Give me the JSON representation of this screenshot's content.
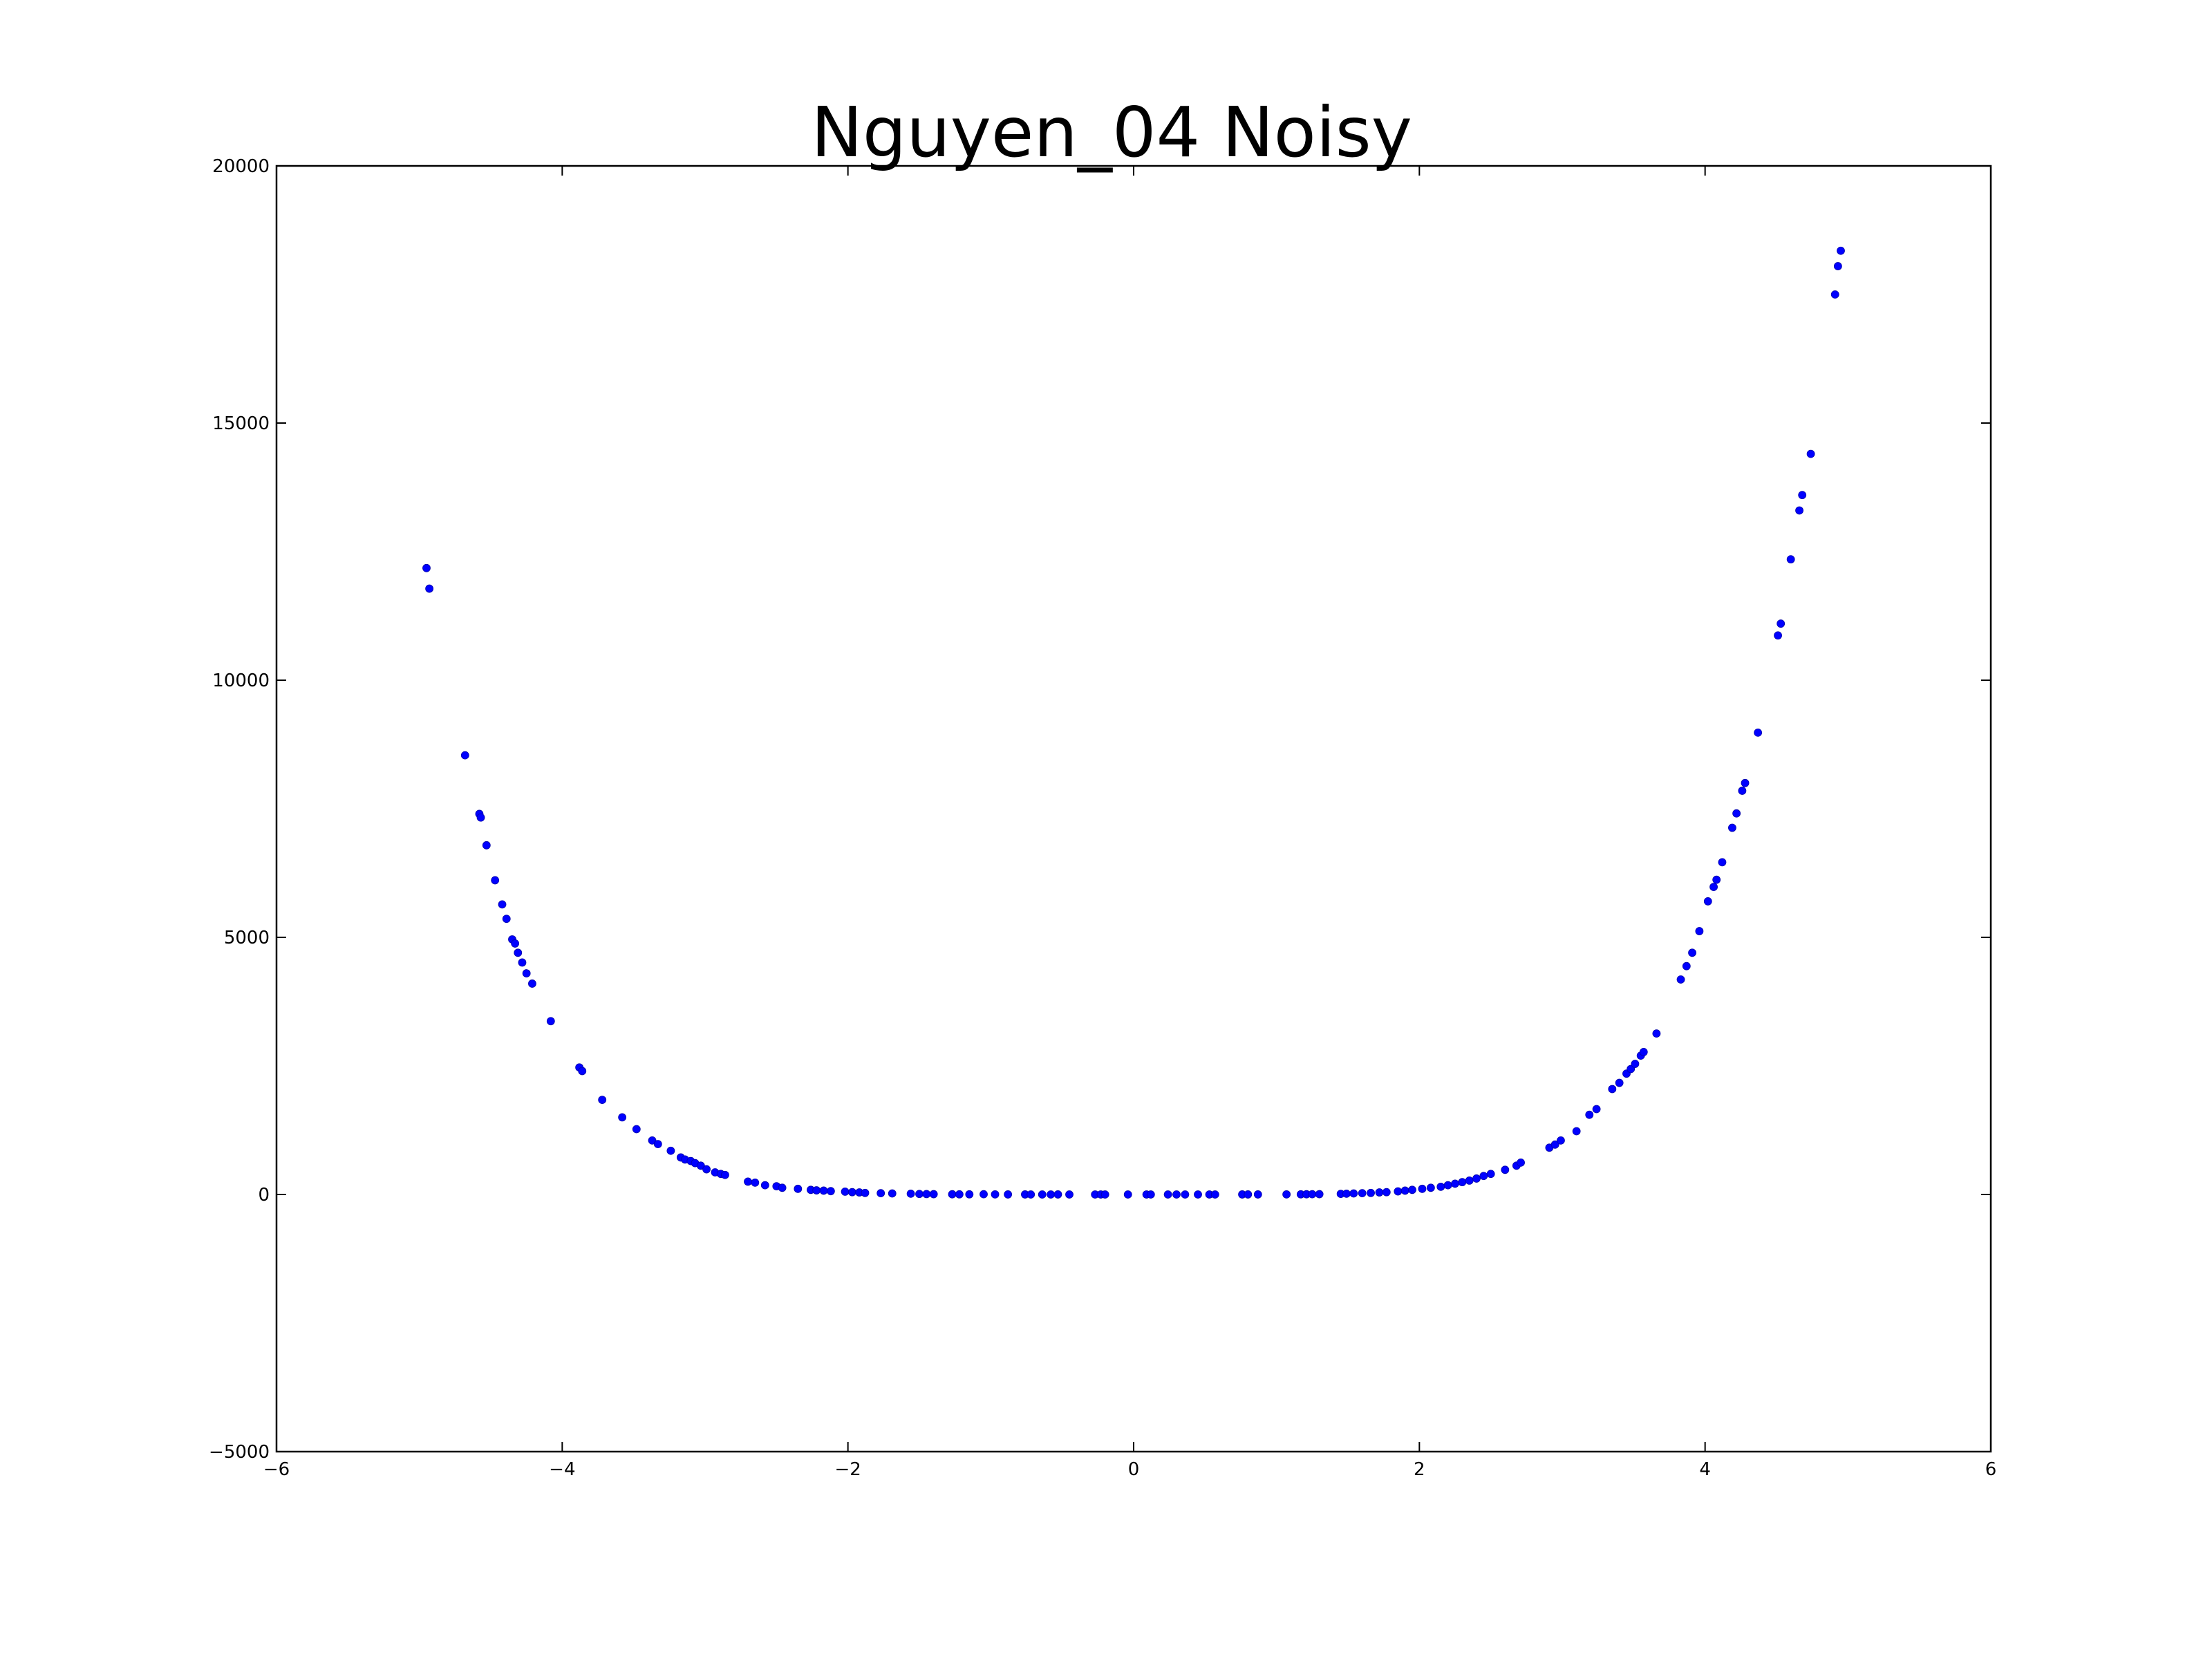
{
  "chart_data": {
    "type": "scatter",
    "title": "Nguyen_04 Noisy",
    "xlabel": "",
    "ylabel": "",
    "xlim": [
      -6,
      6
    ],
    "ylim": [
      -5000,
      20000
    ],
    "grid": false,
    "xticks": [
      -6,
      -4,
      -2,
      0,
      2,
      4,
      6
    ],
    "yticks": [
      -5000,
      0,
      5000,
      10000,
      15000,
      20000
    ],
    "xtick_labels": [
      "−6",
      "−4",
      "−2",
      "0",
      "2",
      "4",
      "6"
    ],
    "ytick_labels": [
      "−5000",
      "0",
      "5000",
      "10000",
      "15000",
      "20000"
    ],
    "marker_color": "#0000ff",
    "series": [
      {
        "points": [
          [
            -4.95,
            12180
          ],
          [
            -4.93,
            11780
          ],
          [
            -4.68,
            8540
          ],
          [
            -4.58,
            7400
          ],
          [
            -4.57,
            7330
          ],
          [
            -4.53,
            6790
          ],
          [
            -4.47,
            6110
          ],
          [
            -4.42,
            5640
          ],
          [
            -4.39,
            5360
          ],
          [
            -4.35,
            4960
          ],
          [
            -4.33,
            4880
          ],
          [
            -4.31,
            4700
          ],
          [
            -4.28,
            4510
          ],
          [
            -4.25,
            4300
          ],
          [
            -4.21,
            4100
          ],
          [
            -4.08,
            3370
          ],
          [
            -3.88,
            2470
          ],
          [
            -3.86,
            2400
          ],
          [
            -3.72,
            1840
          ],
          [
            -3.58,
            1500
          ],
          [
            -3.48,
            1270
          ],
          [
            -3.37,
            1050
          ],
          [
            -3.33,
            980
          ],
          [
            -3.24,
            850
          ],
          [
            -3.17,
            720
          ],
          [
            -3.14,
            680
          ],
          [
            -3.1,
            650
          ],
          [
            -3.07,
            610
          ],
          [
            -3.03,
            560
          ],
          [
            -2.99,
            490
          ],
          [
            -2.93,
            430
          ],
          [
            -2.89,
            400
          ],
          [
            -2.86,
            380
          ],
          [
            -2.7,
            250
          ],
          [
            -2.65,
            230
          ],
          [
            -2.58,
            180
          ],
          [
            -2.5,
            160
          ],
          [
            -2.46,
            130
          ],
          [
            -2.35,
            110
          ],
          [
            -2.26,
            90
          ],
          [
            -2.22,
            80
          ],
          [
            -2.17,
            75
          ],
          [
            -2.12,
            65
          ],
          [
            -2.02,
            55
          ],
          [
            -1.97,
            45
          ],
          [
            -1.92,
            40
          ],
          [
            -1.88,
            30
          ],
          [
            -1.77,
            25
          ],
          [
            -1.69,
            20
          ],
          [
            -1.56,
            15
          ],
          [
            -1.5,
            10
          ],
          [
            -1.45,
            8
          ],
          [
            -1.4,
            6
          ],
          [
            -1.27,
            4
          ],
          [
            -1.22,
            3
          ],
          [
            -1.15,
            3
          ],
          [
            -1.05,
            5
          ],
          [
            -0.97,
            2
          ],
          [
            -0.88,
            1
          ],
          [
            -0.76,
            1
          ],
          [
            -0.72,
            0
          ],
          [
            -0.64,
            0
          ],
          [
            -0.58,
            0
          ],
          [
            -0.53,
            1
          ],
          [
            -0.45,
            0
          ],
          [
            -0.27,
            0
          ],
          [
            -0.23,
            0
          ],
          [
            -0.2,
            0
          ],
          [
            -0.04,
            0
          ],
          [
            0.09,
            0
          ],
          [
            0.12,
            0
          ],
          [
            0.24,
            0
          ],
          [
            0.3,
            0
          ],
          [
            0.36,
            0
          ],
          [
            0.45,
            0
          ],
          [
            0.53,
            0
          ],
          [
            0.57,
            0
          ],
          [
            0.76,
            1
          ],
          [
            0.8,
            1
          ],
          [
            0.87,
            1
          ],
          [
            1.07,
            2
          ],
          [
            1.17,
            3
          ],
          [
            1.21,
            4
          ],
          [
            1.25,
            5
          ],
          [
            1.3,
            6
          ],
          [
            1.45,
            12
          ],
          [
            1.49,
            15
          ],
          [
            1.54,
            20
          ],
          [
            1.6,
            25
          ],
          [
            1.66,
            30
          ],
          [
            1.72,
            40
          ],
          [
            1.77,
            45
          ],
          [
            1.85,
            60
          ],
          [
            1.9,
            75
          ],
          [
            1.95,
            90
          ],
          [
            2.02,
            110
          ],
          [
            2.08,
            130
          ],
          [
            2.15,
            150
          ],
          [
            2.2,
            180
          ],
          [
            2.25,
            210
          ],
          [
            2.3,
            240
          ],
          [
            2.35,
            270
          ],
          [
            2.4,
            310
          ],
          [
            2.45,
            360
          ],
          [
            2.5,
            400
          ],
          [
            2.6,
            480
          ],
          [
            2.68,
            560
          ],
          [
            2.71,
            620
          ],
          [
            2.91,
            910
          ],
          [
            2.95,
            970
          ],
          [
            2.99,
            1050
          ],
          [
            3.1,
            1230
          ],
          [
            3.19,
            1550
          ],
          [
            3.24,
            1660
          ],
          [
            3.35,
            2050
          ],
          [
            3.4,
            2170
          ],
          [
            3.45,
            2350
          ],
          [
            3.48,
            2440
          ],
          [
            3.51,
            2540
          ],
          [
            3.55,
            2700
          ],
          [
            3.57,
            2770
          ],
          [
            3.66,
            3130
          ],
          [
            3.83,
            4180
          ],
          [
            3.87,
            4440
          ],
          [
            3.91,
            4700
          ],
          [
            3.96,
            5120
          ],
          [
            4.02,
            5700
          ],
          [
            4.06,
            5980
          ],
          [
            4.08,
            6120
          ],
          [
            4.12,
            6460
          ],
          [
            4.19,
            7130
          ],
          [
            4.22,
            7410
          ],
          [
            4.26,
            7850
          ],
          [
            4.28,
            8000
          ],
          [
            4.37,
            8980
          ],
          [
            4.51,
            10870
          ],
          [
            4.53,
            11100
          ],
          [
            4.6,
            12350
          ],
          [
            4.66,
            13300
          ],
          [
            4.68,
            13600
          ],
          [
            4.74,
            14400
          ],
          [
            4.91,
            17500
          ],
          [
            4.93,
            18050
          ],
          [
            4.95,
            18350
          ]
        ]
      }
    ]
  }
}
